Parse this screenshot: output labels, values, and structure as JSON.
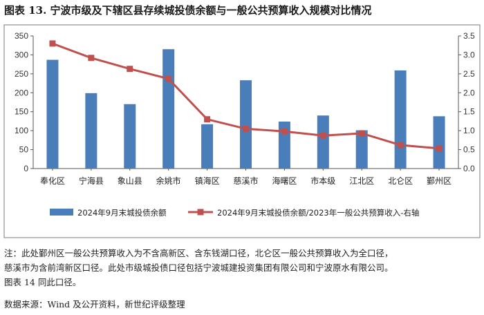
{
  "figure": {
    "title": "图表 13. 宁波市级及下辖区县存续城投债余额与一般公共预算收入规模对比情况"
  },
  "chart_data": {
    "type": "bar",
    "categories": [
      "奉化区",
      "宁海县",
      "象山县",
      "余姚市",
      "镇海区",
      "慈溪市",
      "海曙区",
      "市本级",
      "江北区",
      "北仑区",
      "鄞州区"
    ],
    "series": [
      {
        "name": "2024年9月末城投债余额",
        "type": "bar",
        "axis": "left",
        "color": "#4a7ebb",
        "values": [
          287,
          199,
          170,
          315,
          117,
          233,
          124,
          140,
          101,
          259,
          138
        ]
      },
      {
        "name": "2024年9月末城投债余额/2023年一般公共预算收入-右轴",
        "type": "line",
        "axis": "right",
        "color": "#c0504d",
        "values": [
          3.3,
          2.92,
          2.63,
          2.37,
          1.3,
          1.05,
          0.98,
          0.87,
          0.93,
          0.62,
          0.53
        ]
      }
    ],
    "yaxis_left": {
      "min": 0,
      "max": 350,
      "step": 50,
      "ticks": [
        "0",
        "50",
        "100",
        "150",
        "200",
        "250",
        "300",
        "350"
      ]
    },
    "yaxis_right": {
      "min": 0,
      "max": 3.5,
      "step": 0.5,
      "ticks": [
        "0.0",
        "0.5",
        "1.0",
        "1.5",
        "2.0",
        "2.5",
        "3.0",
        "3.5"
      ]
    },
    "grid": false,
    "legend_position": "bottom"
  },
  "notes": {
    "line1": "注：此处鄞州区一般公共预算收入为不含高新区、含东钱湖口径，北仑区一般公共预算收入为全口径，",
    "line2": "慈溪市为含前湾新区口径。此处市级城投债口径包括宁波城建投资集团有限公司和宁波原水有限公司。",
    "line3": "图表 14 同此口径。"
  },
  "source": "数据来源：Wind 及公开资料，新世纪评级整理"
}
